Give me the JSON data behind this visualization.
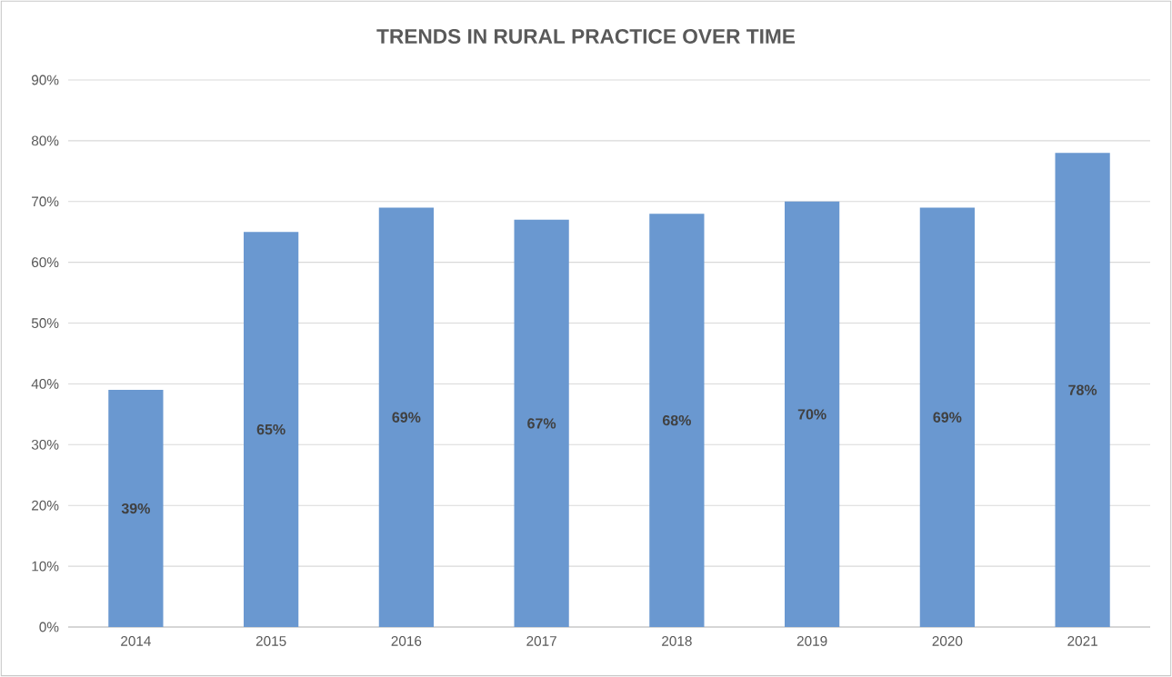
{
  "chart_data": {
    "type": "bar",
    "title": "TRENDS IN RURAL PRACTICE OVER TIME",
    "categories": [
      "2014",
      "2015",
      "2016",
      "2017",
      "2018",
      "2019",
      "2020",
      "2021"
    ],
    "values": [
      39,
      65,
      69,
      67,
      68,
      70,
      69,
      78
    ],
    "value_labels": [
      "39%",
      "65%",
      "69%",
      "67%",
      "68%",
      "70%",
      "69%",
      "78%"
    ],
    "color": "#6a98d0",
    "ylim": [
      0,
      90
    ],
    "yticks": [
      {
        "value": 0,
        "label": "0%"
      },
      {
        "value": 10,
        "label": "10%"
      },
      {
        "value": 20,
        "label": "20%"
      },
      {
        "value": 30,
        "label": "30%"
      },
      {
        "value": 40,
        "label": "40%"
      },
      {
        "value": 50,
        "label": "50%"
      },
      {
        "value": 60,
        "label": "60%"
      },
      {
        "value": 70,
        "label": "70%"
      },
      {
        "value": 80,
        "label": "80%"
      },
      {
        "value": 90,
        "label": "90%"
      }
    ],
    "grid": "y"
  }
}
